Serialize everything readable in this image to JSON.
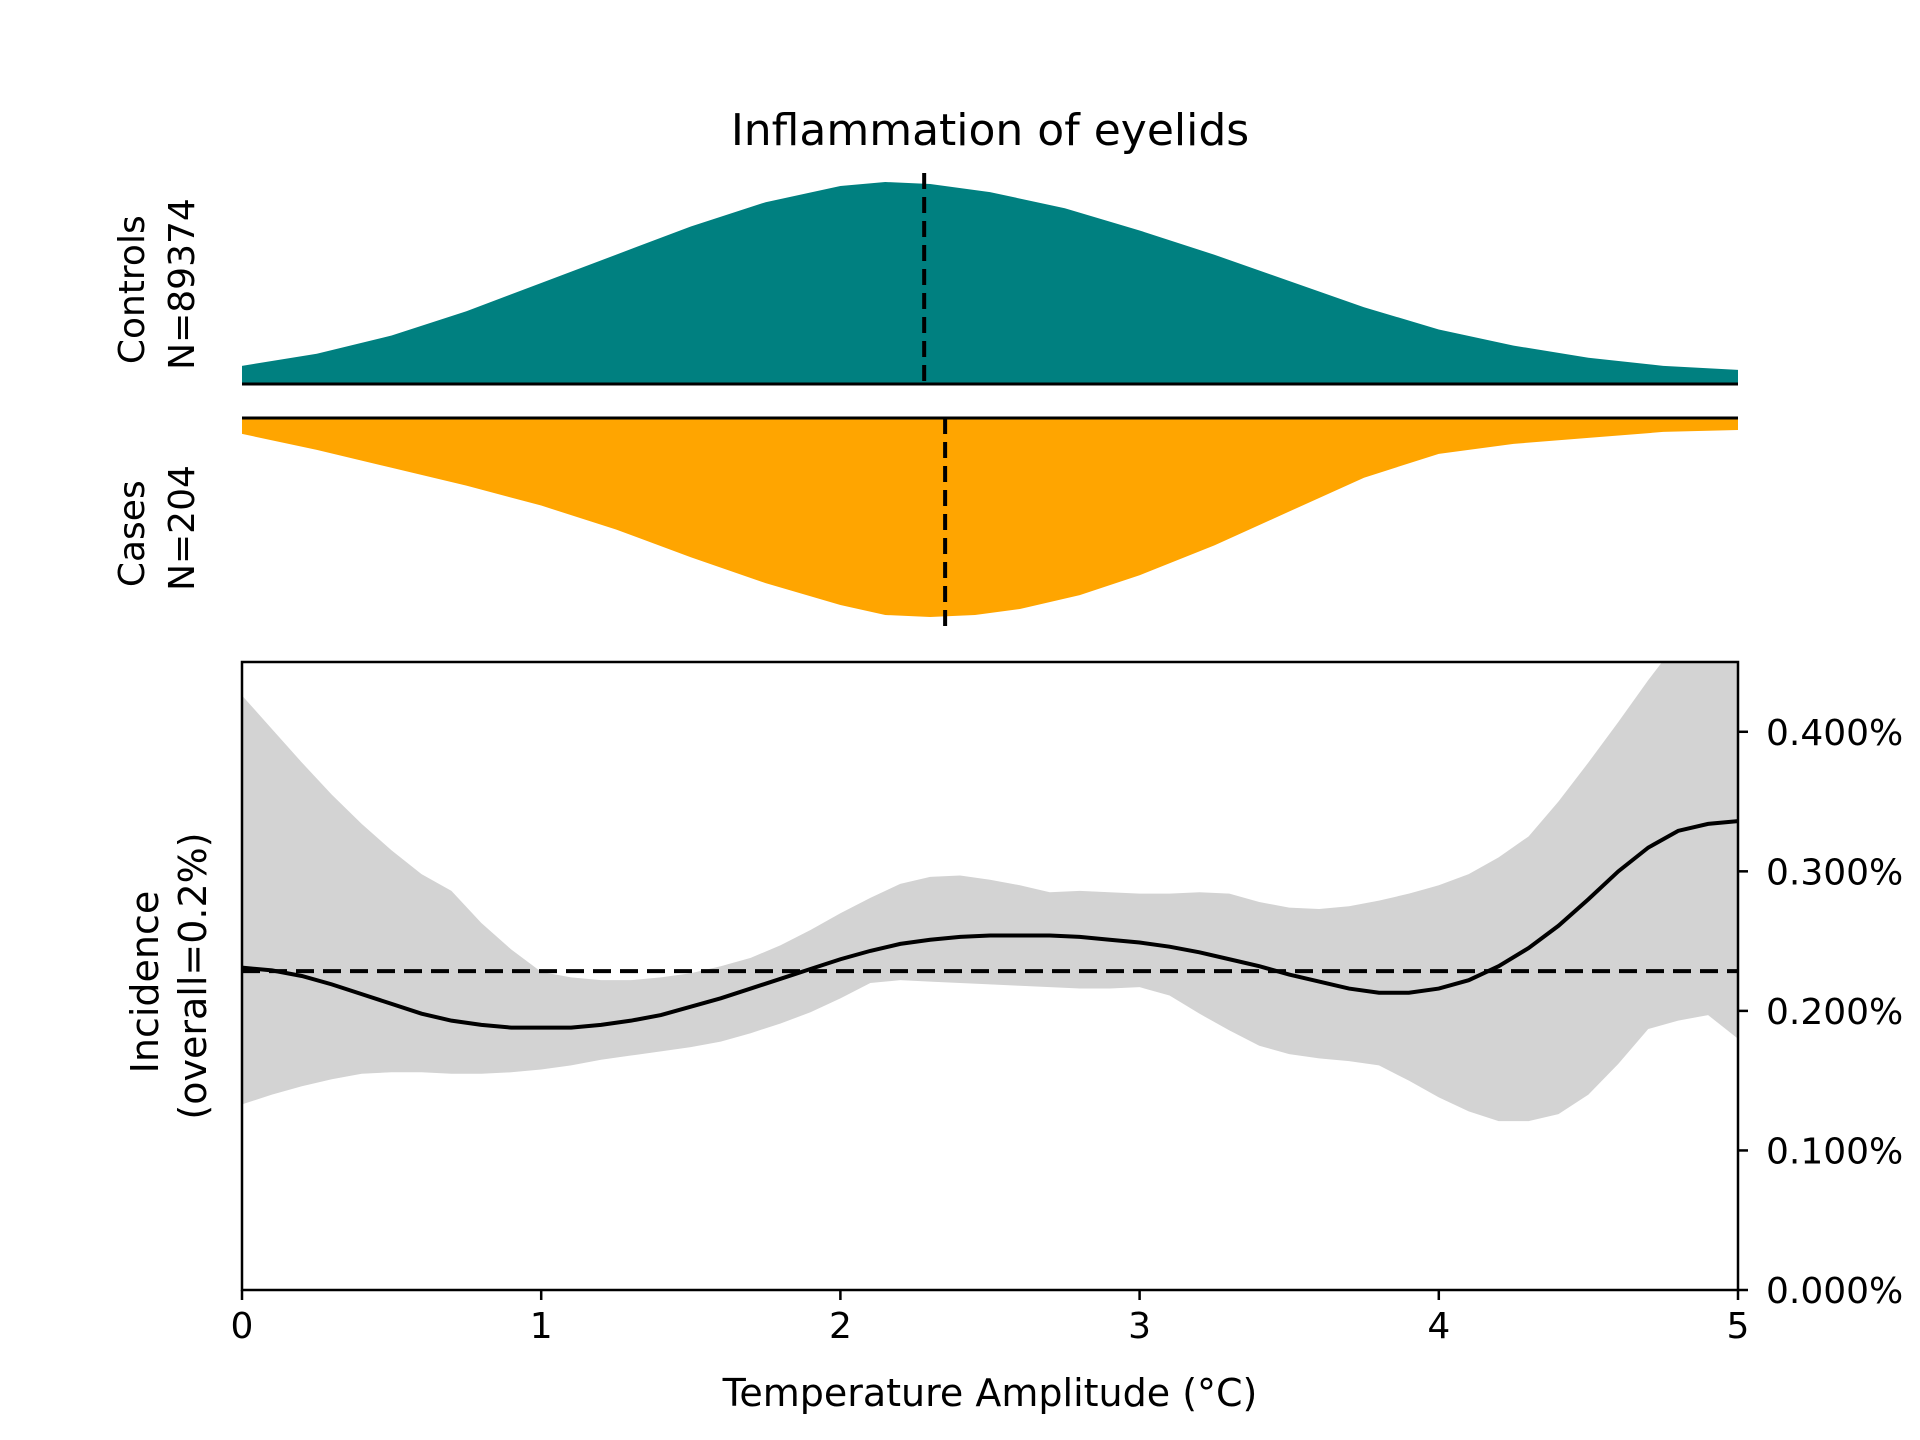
{
  "chart_data": {
    "type": "area",
    "title": "Inflammation of eyelids",
    "xlabel": "Temperature Amplitude (°C)",
    "xlim": [
      0,
      5
    ],
    "x_ticks": [
      0,
      1,
      2,
      3,
      4,
      5
    ],
    "x_tick_labels": [
      "0",
      "1",
      "2",
      "3",
      "4",
      "5"
    ],
    "colors": {
      "controls": "#008080",
      "cases": "#FFA500",
      "ci_band": "#D3D3D3",
      "line": "#000000"
    },
    "controls": {
      "label_line1": "Controls",
      "label_line2": "N=89374",
      "mean": 2.28,
      "density_x": [
        0,
        0.25,
        0.5,
        0.75,
        1.0,
        1.25,
        1.5,
        1.75,
        2.0,
        2.15,
        2.3,
        2.5,
        2.75,
        3.0,
        3.25,
        3.5,
        3.75,
        4.0,
        4.25,
        4.5,
        4.75,
        5.0
      ],
      "density": [
        0.09,
        0.15,
        0.24,
        0.36,
        0.5,
        0.64,
        0.78,
        0.9,
        0.98,
        1.0,
        0.99,
        0.95,
        0.87,
        0.76,
        0.64,
        0.51,
        0.38,
        0.27,
        0.19,
        0.13,
        0.09,
        0.07
      ]
    },
    "cases": {
      "label_line1": "Cases",
      "label_line2": "N=204",
      "mean": 2.35,
      "density_x": [
        0,
        0.25,
        0.5,
        0.75,
        1.0,
        1.25,
        1.5,
        1.75,
        2.0,
        2.15,
        2.3,
        2.45,
        2.6,
        2.8,
        3.0,
        3.25,
        3.5,
        3.75,
        4.0,
        4.25,
        4.5,
        4.75,
        5.0
      ],
      "density": [
        0.08,
        0.16,
        0.25,
        0.34,
        0.44,
        0.56,
        0.7,
        0.83,
        0.94,
        0.99,
        1.0,
        0.99,
        0.96,
        0.89,
        0.79,
        0.64,
        0.47,
        0.3,
        0.18,
        0.13,
        0.1,
        0.07,
        0.06
      ]
    },
    "incidence": {
      "ylabel_line1": "Incidence",
      "ylabel_line2": "(overall=0.2%)",
      "overall": 0.2285,
      "ylim": [
        0,
        0.45
      ],
      "y_ticks": [
        0,
        0.1,
        0.2,
        0.3,
        0.4
      ],
      "y_tick_labels": [
        "0.000%",
        "0.100%",
        "0.200%",
        "0.300%",
        "0.400%"
      ],
      "x": [
        0,
        0.1,
        0.2,
        0.3,
        0.4,
        0.5,
        0.6,
        0.7,
        0.8,
        0.9,
        1.0,
        1.1,
        1.2,
        1.3,
        1.4,
        1.5,
        1.6,
        1.7,
        1.8,
        1.9,
        2.0,
        2.1,
        2.2,
        2.3,
        2.4,
        2.5,
        2.6,
        2.7,
        2.8,
        2.9,
        3.0,
        3.1,
        3.2,
        3.3,
        3.4,
        3.5,
        3.6,
        3.7,
        3.8,
        3.9,
        4.0,
        4.1,
        4.2,
        4.3,
        4.4,
        4.5,
        4.6,
        4.7,
        4.8,
        4.9,
        5.0
      ],
      "value": [
        0.231,
        0.229,
        0.225,
        0.219,
        0.212,
        0.205,
        0.198,
        0.193,
        0.19,
        0.188,
        0.188,
        0.188,
        0.19,
        0.193,
        0.197,
        0.203,
        0.209,
        0.216,
        0.223,
        0.23,
        0.237,
        0.243,
        0.248,
        0.251,
        0.253,
        0.254,
        0.254,
        0.254,
        0.253,
        0.251,
        0.249,
        0.246,
        0.242,
        0.237,
        0.232,
        0.226,
        0.221,
        0.216,
        0.213,
        0.213,
        0.216,
        0.222,
        0.232,
        0.245,
        0.261,
        0.28,
        0.3,
        0.317,
        0.329,
        0.334,
        0.336
      ],
      "ci_upper": [
        0.426,
        0.402,
        0.378,
        0.355,
        0.334,
        0.315,
        0.298,
        0.286,
        0.263,
        0.244,
        0.228,
        0.224,
        0.222,
        0.222,
        0.224,
        0.227,
        0.232,
        0.238,
        0.247,
        0.258,
        0.27,
        0.281,
        0.291,
        0.296,
        0.297,
        0.294,
        0.29,
        0.285,
        0.286,
        0.285,
        0.284,
        0.284,
        0.285,
        0.284,
        0.278,
        0.274,
        0.273,
        0.275,
        0.279,
        0.284,
        0.29,
        0.298,
        0.31,
        0.325,
        0.35,
        0.378,
        0.407,
        0.437,
        0.465,
        0.475,
        0.48
      ],
      "ci_lower": [
        0.133,
        0.14,
        0.146,
        0.151,
        0.155,
        0.156,
        0.156,
        0.155,
        0.155,
        0.156,
        0.158,
        0.161,
        0.165,
        0.168,
        0.171,
        0.174,
        0.178,
        0.184,
        0.191,
        0.199,
        0.209,
        0.22,
        0.222,
        0.221,
        0.22,
        0.219,
        0.218,
        0.217,
        0.216,
        0.216,
        0.217,
        0.211,
        0.198,
        0.186,
        0.175,
        0.169,
        0.166,
        0.164,
        0.161,
        0.15,
        0.138,
        0.128,
        0.121,
        0.121,
        0.126,
        0.14,
        0.162,
        0.187,
        0.193,
        0.197,
        0.18
      ]
    }
  }
}
